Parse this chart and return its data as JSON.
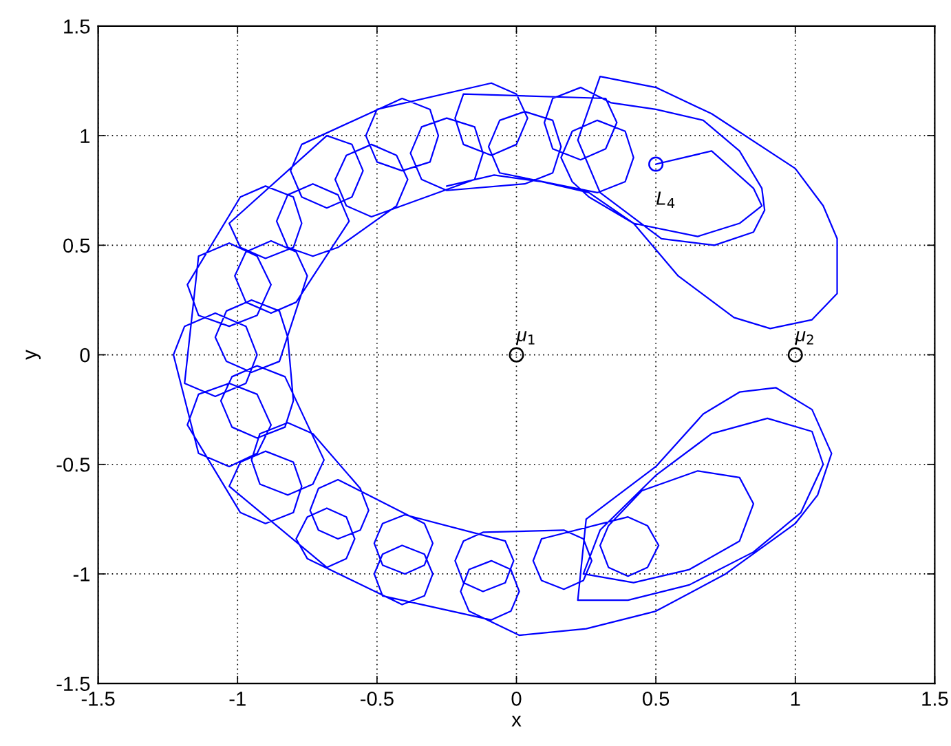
{
  "chart_data": {
    "type": "line",
    "xlabel": "x",
    "ylabel": "y",
    "xlim": [
      -1.5,
      1.5
    ],
    "ylim": [
      -1.5,
      1.5
    ],
    "xticks": [
      -1.5,
      -1,
      -0.5,
      0,
      0.5,
      1,
      1.5
    ],
    "yticks": [
      -1.5,
      -1,
      -0.5,
      0,
      0.5,
      1,
      1.5
    ],
    "grid": true,
    "series": [
      {
        "color": "#0000ff",
        "x": [
          0.5,
          0.7,
          0.85,
          0.88,
          0.8,
          0.65,
          0.42,
          0.26,
          0.2,
          0.16,
          0.2,
          0.29,
          0.39,
          0.42,
          0.39,
          0.29,
          -0.06,
          -0.1,
          -0.06,
          0.03,
          0.13,
          0.16,
          0.13,
          0.03,
          -0.25,
          -0.34,
          -0.38,
          -0.34,
          -0.25,
          -0.15,
          -0.12,
          -0.15,
          -0.52,
          -0.61,
          -0.65,
          -0.61,
          -0.52,
          -0.43,
          -0.39,
          -0.43,
          -0.64,
          -0.73,
          -0.82,
          -0.86,
          -0.82,
          -0.73,
          -0.64,
          -0.6,
          -0.79,
          -0.88,
          -0.97,
          -1.01,
          -0.97,
          -0.88,
          -0.79,
          -0.75,
          -0.85,
          -0.95,
          -1.04,
          -1.08,
          -1.04,
          -0.95,
          -0.85,
          -0.82,
          -0.8,
          -0.83,
          -0.93,
          -1.02,
          -1.06,
          -1.02,
          -0.93,
          -0.83,
          -0.69,
          -0.73,
          -0.82,
          -0.92,
          -0.95,
          -0.92,
          -0.82,
          -0.73,
          -0.56,
          -0.53,
          -0.56,
          -0.64,
          -0.71,
          -0.74,
          -0.71,
          -0.64,
          -0.33,
          -0.3,
          -0.33,
          -0.4,
          -0.48,
          -0.51,
          -0.48,
          -0.4,
          -0.04,
          -0.01,
          -0.04,
          -0.12,
          -0.19,
          -0.22,
          -0.19,
          -0.12,
          0.17,
          0.24,
          0.27,
          0.24,
          0.17,
          0.09,
          0.06,
          0.09,
          0.4,
          0.47,
          0.51,
          0.47,
          0.4,
          0.33,
          0.3,
          0.33,
          0.45,
          0.65,
          0.8,
          0.85,
          0.8,
          0.62,
          0.42,
          0.24,
          0.3,
          0.5,
          0.7,
          0.9,
          1.06,
          1.1,
          1.02,
          0.85,
          0.62,
          0.4,
          0.22,
          0.25,
          0.5,
          0.67,
          0.8,
          0.93,
          1.06,
          1.13,
          1.08,
          1.0,
          0.75,
          0.5,
          0.25,
          0.01,
          -0.17,
          -0.2,
          -0.17,
          -0.09,
          -0.02,
          0.01,
          -0.02,
          -0.09,
          -0.48,
          -0.51,
          -0.48,
          -0.41,
          -0.33,
          -0.3,
          -0.33,
          -0.41,
          -0.75,
          -0.79,
          -0.75,
          -0.68,
          -0.61,
          -0.58,
          -0.61,
          -0.68,
          -1.03,
          -0.99,
          -0.9,
          -0.8,
          -0.77,
          -0.8,
          -0.9,
          -0.99,
          -1.18,
          -1.14,
          -1.03,
          -0.93,
          -0.88,
          -0.93,
          -1.03,
          -1.14,
          -1.23,
          -1.19,
          -1.08,
          -0.97,
          -0.93,
          -0.97,
          -1.08,
          -1.19,
          -1.14,
          -1.03,
          -0.93,
          -0.88,
          -0.93,
          -1.03,
          -1.14,
          -1.18,
          -0.99,
          -0.9,
          -0.8,
          -0.77,
          -0.8,
          -0.9,
          -0.99,
          -1.03,
          -0.68,
          -0.59,
          -0.55,
          -0.59,
          -0.68,
          -0.77,
          -0.81,
          -0.77,
          -0.41,
          -0.31,
          -0.28,
          -0.31,
          -0.41,
          -0.5,
          -0.54,
          -0.5,
          -0.09,
          0.0,
          0.04,
          0.0,
          -0.09,
          -0.19,
          -0.22,
          -0.19,
          0.32,
          0.36,
          0.32,
          0.23,
          0.13,
          0.1,
          0.13,
          0.23,
          0.34,
          0.5,
          0.67,
          0.8,
          0.88,
          0.89,
          0.85,
          0.71,
          0.52,
          0.3,
          0.22,
          0.3,
          0.5,
          0.7,
          1.0,
          1.1,
          1.15,
          1.15,
          1.06,
          0.91,
          0.78,
          0.58,
          0.42,
          0.26,
          0.09,
          -0.08,
          -0.25
        ],
        "values": [
          0.87,
          0.93,
          0.76,
          0.68,
          0.6,
          0.54,
          0.6,
          0.72,
          0.79,
          0.9,
          1.02,
          1.07,
          1.02,
          0.9,
          0.79,
          0.74,
          0.83,
          0.95,
          1.07,
          1.11,
          1.07,
          0.95,
          0.83,
          0.78,
          0.75,
          0.8,
          0.92,
          1.04,
          1.08,
          1.04,
          0.92,
          0.8,
          0.63,
          0.68,
          0.8,
          0.91,
          0.96,
          0.91,
          0.8,
          0.68,
          0.49,
          0.45,
          0.49,
          0.61,
          0.73,
          0.78,
          0.73,
          0.61,
          0.24,
          0.19,
          0.24,
          0.36,
          0.47,
          0.52,
          0.47,
          0.36,
          -0.03,
          -0.08,
          -0.03,
          0.08,
          0.2,
          0.25,
          0.2,
          0.08,
          -0.21,
          -0.33,
          -0.38,
          -0.33,
          -0.21,
          -0.1,
          -0.05,
          -0.1,
          -0.48,
          -0.59,
          -0.64,
          -0.59,
          -0.48,
          -0.36,
          -0.31,
          -0.36,
          -0.61,
          -0.71,
          -0.8,
          -0.84,
          -0.8,
          -0.71,
          -0.61,
          -0.57,
          -0.77,
          -0.86,
          -0.96,
          -1.0,
          -0.96,
          -0.86,
          -0.77,
          -0.73,
          -0.85,
          -0.94,
          -1.04,
          -1.08,
          -1.04,
          -0.94,
          -0.85,
          -0.81,
          -0.8,
          -0.84,
          -0.94,
          -1.03,
          -1.07,
          -1.03,
          -0.94,
          -0.84,
          -0.74,
          -0.78,
          -0.87,
          -0.97,
          -1.01,
          -0.97,
          -0.87,
          -0.78,
          -0.62,
          -0.53,
          -0.56,
          -0.68,
          -0.85,
          -0.98,
          -1.04,
          -1.0,
          -0.8,
          -0.55,
          -0.36,
          -0.29,
          -0.35,
          -0.5,
          -0.72,
          -0.9,
          -1.05,
          -1.12,
          -1.12,
          -0.75,
          -0.51,
          -0.27,
          -0.17,
          -0.15,
          -0.25,
          -0.45,
          -0.64,
          -0.77,
          -1.0,
          -1.17,
          -1.25,
          -1.28,
          -1.17,
          -1.08,
          -0.98,
          -0.94,
          -0.98,
          -1.08,
          -1.17,
          -1.21,
          -1.1,
          -1.0,
          -0.91,
          -0.87,
          -0.91,
          -1.0,
          -1.1,
          -1.14,
          -0.93,
          -0.84,
          -0.74,
          -0.7,
          -0.74,
          -0.84,
          -0.93,
          -0.97,
          -0.6,
          -0.49,
          -0.44,
          -0.49,
          -0.6,
          -0.72,
          -0.77,
          -0.72,
          -0.32,
          -0.18,
          -0.13,
          -0.18,
          -0.32,
          -0.45,
          -0.51,
          -0.45,
          0.0,
          0.13,
          0.19,
          0.13,
          0.0,
          -0.13,
          -0.19,
          -0.13,
          0.45,
          0.51,
          0.45,
          0.32,
          0.18,
          0.13,
          0.18,
          0.32,
          0.72,
          0.77,
          0.72,
          0.6,
          0.49,
          0.44,
          0.49,
          0.6,
          1.0,
          0.96,
          0.84,
          0.72,
          0.67,
          0.72,
          0.84,
          0.96,
          1.17,
          1.12,
          1.0,
          0.88,
          0.84,
          0.88,
          1.0,
          1.12,
          1.24,
          1.19,
          1.08,
          0.96,
          0.91,
          0.96,
          1.08,
          1.19,
          1.17,
          1.06,
          0.94,
          0.89,
          0.94,
          1.06,
          1.17,
          1.22,
          1.15,
          1.12,
          1.07,
          0.93,
          0.76,
          0.66,
          0.56,
          0.5,
          0.53,
          0.74,
          0.98,
          1.27,
          1.22,
          1.1,
          0.85,
          0.68,
          0.53,
          0.28,
          0.16,
          0.12,
          0.17,
          0.36,
          0.6,
          0.74,
          0.79,
          0.82,
          0.77
        ]
      },
      {
        "type": "scatter",
        "marker": "circle",
        "x": [
          0,
          1,
          0.5
        ],
        "values": [
          0,
          0,
          0.87
        ],
        "colors": [
          "#000000",
          "#000000",
          "#0000ff"
        ]
      }
    ],
    "annotations": [
      {
        "text": "μ$_{1}$",
        "x": 0,
        "y": 0
      },
      {
        "text": "μ$_{2}$",
        "x": 1,
        "y": 0
      },
      {
        "text": "L$_{4}$",
        "x": 0.5,
        "y": 0.87
      }
    ]
  }
}
